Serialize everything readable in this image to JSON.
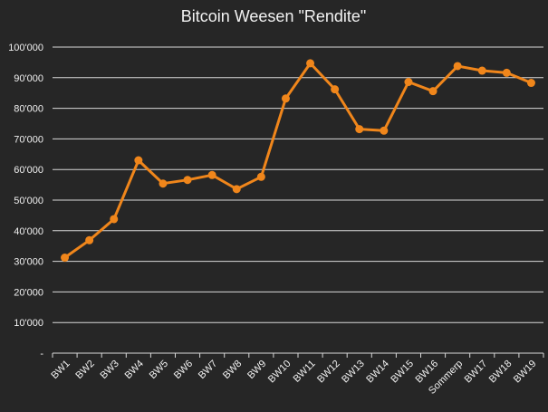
{
  "chart_data": {
    "type": "line",
    "title": "Bitcoin Weesen \"Rendite\"",
    "categories": [
      "BW1",
      "BW2",
      "BW3",
      "BW4",
      "BW5",
      "BW6",
      "BW7",
      "BW8",
      "BW9",
      "BW10",
      "BW11",
      "BW12",
      "BW13",
      "BW14",
      "BW15",
      "BW16",
      "Sommerp",
      "BW17",
      "BW18",
      "BW19"
    ],
    "series": [
      {
        "values": [
          31200,
          36900,
          43800,
          63000,
          55400,
          56600,
          58200,
          53600,
          57600,
          83200,
          94700,
          86200,
          73200,
          72700,
          88600,
          85600,
          93800,
          92300,
          91600,
          88300
        ]
      }
    ],
    "yticks": [
      "-",
      "10'000",
      "20'000",
      "30'000",
      "40'000",
      "50'000",
      "60'000",
      "70'000",
      "80'000",
      "90'000",
      "100'000"
    ],
    "ylim": [
      0,
      100000
    ],
    "grid": true,
    "colors": {
      "line": "#f0861b",
      "background": "#262626",
      "grid": "#d9d9d9",
      "text": "#f0f0f0"
    }
  }
}
